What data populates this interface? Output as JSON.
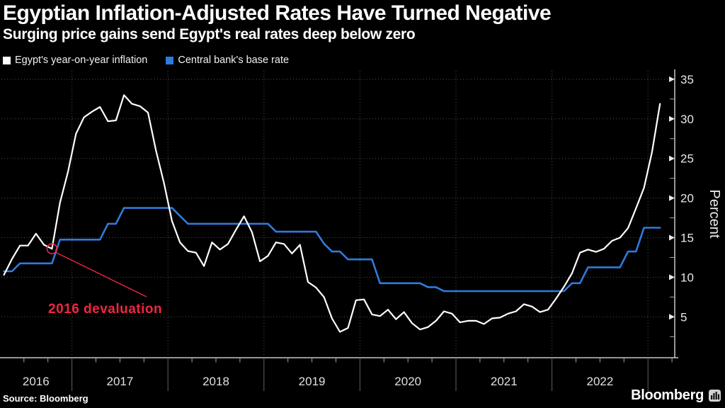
{
  "header": {
    "title": "Egyptian Inflation-Adjusted Rates Have Turned Negative",
    "subtitle": "Surging price gains send Egypt's real rates deep below zero"
  },
  "legend": {
    "items": [
      {
        "label": "Egypt's year-on-year inflation",
        "color": "#ffffff"
      },
      {
        "label": "Central bank's base rate",
        "color": "#2e7bdb"
      }
    ]
  },
  "annotation": {
    "label": "2016 devaluation",
    "color": "#ef2640"
  },
  "footer": {
    "source": "Source: Bloomberg",
    "brand": "Bloomberg"
  },
  "colors": {
    "background": "#000000",
    "grid": "#4f4f4f",
    "axis": "#c8c8c8",
    "tick_text": "#e8e8e8",
    "year_separator": "#616161",
    "minor_tick": "#a8a8a8"
  },
  "chart_data": {
    "type": "line",
    "title": "Egyptian Inflation-Adjusted Rates Have Turned Negative",
    "subtitle": "Surging price gains send Egypt's real rates deep below zero",
    "ylabel": "Percent",
    "ylim": [
      0,
      36
    ],
    "yticks": [
      5,
      10,
      15,
      20,
      25,
      30,
      35
    ],
    "grid": true,
    "legend_position": "top-left",
    "x_years": [
      "2016",
      "2017",
      "2018",
      "2019",
      "2020",
      "2021",
      "2022"
    ],
    "x_start_month": "2016-04",
    "x_end_month": "2023-02",
    "frequency": "monthly",
    "series": [
      {
        "name": "Egypt's year-on-year inflation",
        "color": "#ffffff",
        "values": [
          10.3,
          12.3,
          14.0,
          14.0,
          15.5,
          14.1,
          13.6,
          19.4,
          23.3,
          28.1,
          30.2,
          30.9,
          31.5,
          29.7,
          29.8,
          33.0,
          31.9,
          31.6,
          30.8,
          26.0,
          21.9,
          17.1,
          14.4,
          13.3,
          13.1,
          11.4,
          14.4,
          13.5,
          14.2,
          16.0,
          17.7,
          15.7,
          12.0,
          12.7,
          14.4,
          14.2,
          13.0,
          14.1,
          9.4,
          8.7,
          7.5,
          4.8,
          3.1,
          3.6,
          7.1,
          7.2,
          5.3,
          5.1,
          5.9,
          4.7,
          5.6,
          4.2,
          3.4,
          3.7,
          4.5,
          5.7,
          5.4,
          4.3,
          4.5,
          4.5,
          4.1,
          4.8,
          4.9,
          5.4,
          5.7,
          6.6,
          6.3,
          5.6,
          5.9,
          7.3,
          8.8,
          10.5,
          13.1,
          13.5,
          13.2,
          13.6,
          14.6,
          15.0,
          16.2,
          18.7,
          21.3,
          25.8,
          31.9
        ]
      },
      {
        "name": "Central bank's base rate",
        "color": "#2e7bdb",
        "values": [
          10.75,
          10.75,
          11.75,
          11.75,
          11.75,
          11.75,
          11.75,
          14.75,
          14.75,
          14.75,
          14.75,
          14.75,
          14.75,
          16.75,
          16.75,
          18.75,
          18.75,
          18.75,
          18.75,
          18.75,
          18.75,
          18.75,
          17.75,
          16.75,
          16.75,
          16.75,
          16.75,
          16.75,
          16.75,
          16.75,
          16.75,
          16.75,
          16.75,
          16.75,
          15.75,
          15.75,
          15.75,
          15.75,
          15.75,
          15.75,
          14.25,
          13.25,
          13.25,
          12.25,
          12.25,
          12.25,
          12.25,
          9.25,
          9.25,
          9.25,
          9.25,
          9.25,
          9.25,
          8.75,
          8.75,
          8.25,
          8.25,
          8.25,
          8.25,
          8.25,
          8.25,
          8.25,
          8.25,
          8.25,
          8.25,
          8.25,
          8.25,
          8.25,
          8.25,
          8.25,
          8.25,
          9.25,
          9.25,
          11.25,
          11.25,
          11.25,
          11.25,
          11.25,
          13.25,
          13.25,
          16.25,
          16.25,
          16.25
        ]
      }
    ],
    "annotation": {
      "text": "2016 devaluation",
      "x_month": "2016-10",
      "y": 13.6
    }
  }
}
